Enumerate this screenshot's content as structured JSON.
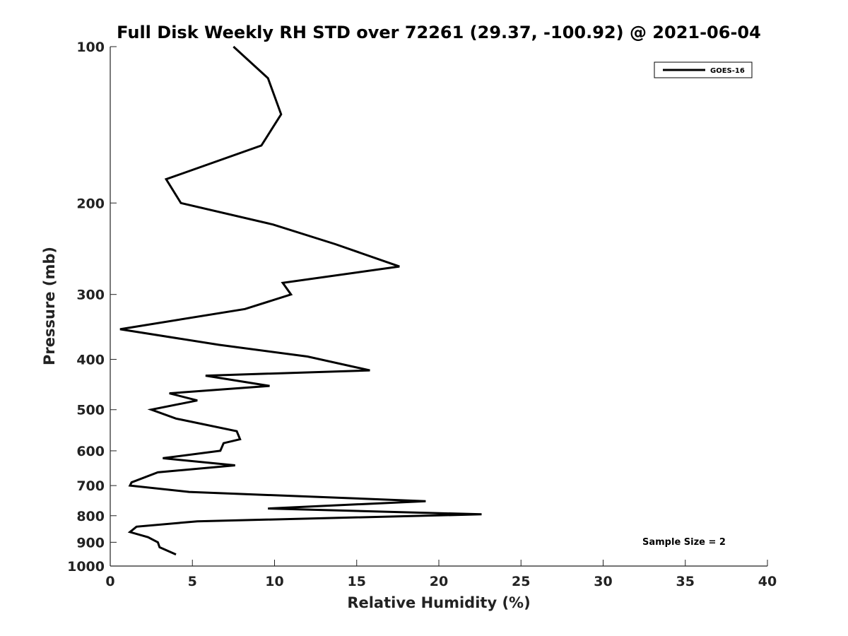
{
  "chart_data": {
    "type": "line",
    "title": "Full Disk Weekly RH STD over 72261 (29.37, -100.92) @ 2021-06-04",
    "xlabel": "Relative Humidity (%)",
    "ylabel": "Pressure (mb)",
    "xlim": [
      0,
      40
    ],
    "ylim": [
      100,
      1000
    ],
    "y_scale": "log",
    "y_inverted": true,
    "x_ticks": [
      0,
      5,
      10,
      15,
      20,
      25,
      30,
      35,
      40
    ],
    "y_ticks": [
      100,
      200,
      300,
      400,
      500,
      600,
      700,
      800,
      900,
      1000
    ],
    "grid": false,
    "legend_position": "top-right",
    "series": [
      {
        "name": "GOES-16",
        "color": "#000000",
        "x": [
          7.5,
          9.6,
          10.4,
          9.2,
          3.4,
          4.3,
          9.9,
          13.7,
          17.6,
          10.5,
          11.0,
          8.2,
          0.6,
          6.6,
          12.0,
          15.8,
          5.8,
          9.7,
          3.6,
          5.3,
          2.5,
          4.0,
          7.7,
          7.9,
          6.9,
          6.7,
          3.2,
          7.6,
          2.9,
          1.3,
          1.2,
          4.8,
          19.2,
          9.6,
          22.6,
          5.3,
          1.6,
          1.2,
          2.3,
          2.9,
          3.0,
          4.0
        ],
        "y": [
          100,
          115,
          135,
          155,
          180,
          200,
          220,
          240,
          265,
          285,
          300,
          320,
          350,
          375,
          395,
          420,
          430,
          450,
          465,
          480,
          500,
          520,
          550,
          570,
          580,
          600,
          620,
          640,
          660,
          690,
          700,
          720,
          750,
          775,
          795,
          820,
          840,
          860,
          880,
          900,
          920,
          950
        ]
      }
    ],
    "annotation": "Sample Size = 2"
  }
}
